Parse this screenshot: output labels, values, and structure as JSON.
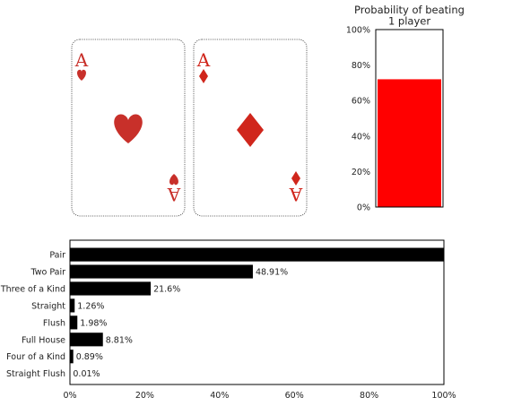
{
  "cards": [
    {
      "rank": "A",
      "suit": "hearts",
      "suit_icon": "heart-icon",
      "color": "#c8302a"
    },
    {
      "rank": "A",
      "suit": "diamonds",
      "suit_icon": "diamond-icon",
      "color": "#d0261c"
    }
  ],
  "chart_data": [
    {
      "type": "bar",
      "title": "Probability of beating\n1 player",
      "categories": [
        ""
      ],
      "values": [
        72
      ],
      "ylim": [
        0,
        100
      ],
      "yticks": [
        "0%",
        "20%",
        "40%",
        "60%",
        "80%",
        "100%"
      ],
      "bar_color": "#ff0000",
      "grid": false
    },
    {
      "type": "bar",
      "orientation": "horizontal",
      "categories": [
        "Pair",
        "Two Pair",
        "Three of a Kind",
        "Straight",
        "Flush",
        "Full House",
        "Four of a Kind",
        "Straight Flush"
      ],
      "values": [
        100,
        48.91,
        21.6,
        1.26,
        1.98,
        8.81,
        0.89,
        0.01
      ],
      "data_labels": [
        "",
        "48.91%",
        "21.6%",
        "1.26%",
        "1.98%",
        "8.81%",
        "0.89%",
        "0.01%"
      ],
      "xlim": [
        0,
        100
      ],
      "xticks": [
        "0%",
        "20%",
        "40%",
        "60%",
        "80%",
        "100%"
      ],
      "bar_color": "#000000",
      "grid": false
    }
  ]
}
